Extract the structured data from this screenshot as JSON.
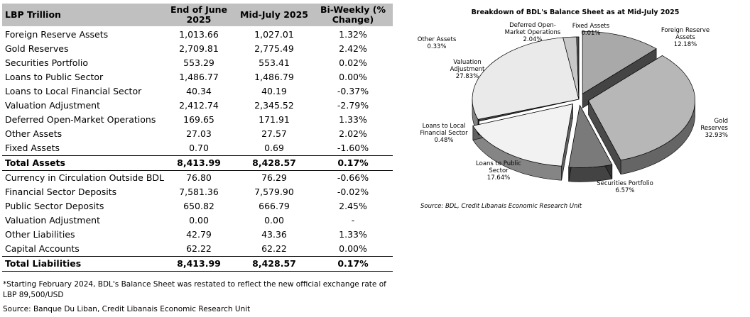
{
  "table": {
    "headers": {
      "label": "LBP Trillion",
      "col1": "End of June 2025",
      "col2": "Mid-July 2025",
      "col3": "Bi-Weekly (% Change)"
    },
    "asset_rows": [
      {
        "label": "Foreign Reserve Assets",
        "jun": "1,013.66",
        "jul": "1,027.01",
        "chg": "1.32%"
      },
      {
        "label": "Gold Reserves",
        "jun": "2,709.81",
        "jul": "2,775.49",
        "chg": "2.42%"
      },
      {
        "label": "Securities Portfolio",
        "jun": "553.29",
        "jul": "553.41",
        "chg": "0.02%"
      },
      {
        "label": "Loans to Public Sector",
        "jun": "1,486.77",
        "jul": "1,486.79",
        "chg": "0.00%"
      },
      {
        "label": "Loans to Local Financial Sector",
        "jun": "40.34",
        "jul": "40.19",
        "chg": "-0.37%"
      },
      {
        "label": "Valuation Adjustment",
        "jun": "2,412.74",
        "jul": "2,345.52",
        "chg": "-2.79%"
      },
      {
        "label": "Deferred Open-Market Operations",
        "jun": "169.65",
        "jul": "171.91",
        "chg": "1.33%"
      },
      {
        "label": "Other Assets",
        "jun": "27.03",
        "jul": "27.57",
        "chg": "2.02%"
      },
      {
        "label": "Fixed Assets",
        "jun": "0.70",
        "jul": "0.69",
        "chg": "-1.60%"
      }
    ],
    "total_assets": {
      "label": "Total Assets",
      "jun": "8,413.99",
      "jul": "8,428.57",
      "chg": "0.17%"
    },
    "liability_rows": [
      {
        "label": "Currency in Circulation Outside BDL",
        "jun": "76.80",
        "jul": "76.29",
        "chg": "-0.66%"
      },
      {
        "label": "Financial Sector Deposits",
        "jun": "7,581.36",
        "jul": "7,579.90",
        "chg": "-0.02%"
      },
      {
        "label": "Public Sector Deposits",
        "jun": "650.82",
        "jul": "666.79",
        "chg": "2.45%"
      },
      {
        "label": "Valuation Adjustment",
        "jun": "0.00",
        "jul": "0.00",
        "chg": "-"
      },
      {
        "label": "Other Liabilities",
        "jun": "42.79",
        "jul": "43.36",
        "chg": "1.33%"
      },
      {
        "label": "Capital Accounts",
        "jun": "62.22",
        "jul": "62.22",
        "chg": "0.00%"
      }
    ],
    "total_liabilities": {
      "label": "Total Liabilities",
      "jun": "8,413.99",
      "jul": "8,428.57",
      "chg": "0.17%"
    },
    "note": "*Starting February 2024, BDL's Balance Sheet was restated to reflect the new official exchange rate of LBP 89,500/USD",
    "source": "Source: Banque Du Liban, Credit Libanais Economic Research Unit"
  },
  "chart_data": {
    "type": "pie",
    "title": "Breakdown of BDL's Balance Sheet as at Mid-July 2025",
    "source": "Source: BDL, Credit Libanais Economic Research Unit",
    "slices": [
      {
        "label": "Foreign Reserve Assets",
        "value_label": "12.18%",
        "value": 12.18,
        "color": "#a9a9a9",
        "exploded": true
      },
      {
        "label": "Gold Reserves",
        "value_label": "32.93%",
        "value": 32.93,
        "color": "#b7b7b7",
        "exploded": true
      },
      {
        "label": "Securities Portfolio",
        "value_label": "6.57%",
        "value": 6.57,
        "color": "#7a7a7a",
        "exploded": true
      },
      {
        "label": "Loans to Public Sector",
        "value_label": "17.64%",
        "value": 17.64,
        "color": "#f2f2f2",
        "exploded": true
      },
      {
        "label": "Loans to Local Financial Sector",
        "value_label": "0.48%",
        "value": 0.48,
        "color": "#404040",
        "exploded": false
      },
      {
        "label": "Valuation Adjustment",
        "value_label": "27.83%",
        "value": 27.83,
        "color": "#eaeaea",
        "exploded": false
      },
      {
        "label": "Deferred Open-Market Operations",
        "value_label": "2.04%",
        "value": 2.04,
        "color": "#c8c8c8",
        "exploded": false
      },
      {
        "label": "Other Assets",
        "value_label": "0.33%",
        "value": 0.33,
        "color": "#5a5a5a",
        "exploded": false
      },
      {
        "label": "Fixed Assets",
        "value_label": "0.01%",
        "value": 0.01,
        "color": "#000000",
        "exploded": false
      }
    ]
  }
}
